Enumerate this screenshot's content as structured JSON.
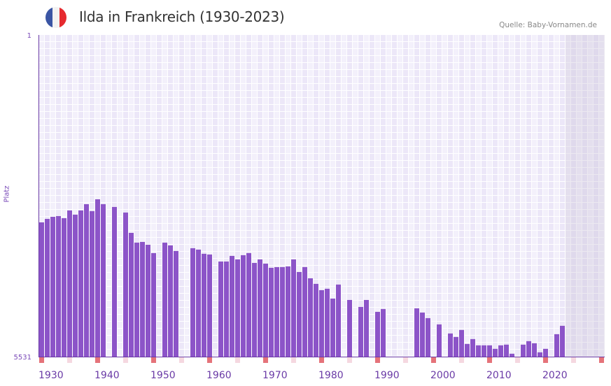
{
  "header": {
    "title": "Ilda in Frankreich (1930-2023)",
    "source": "Quelle: Baby-Vornamen.de",
    "flag_colors": [
      "#3a55a4",
      "#f2f2f2",
      "#e62a2f"
    ]
  },
  "chart_data": {
    "type": "bar",
    "title": "Ilda in Frankreich (1930-2023)",
    "xlabel": "",
    "ylabel": "Platz",
    "xlim": [
      1930,
      2030
    ],
    "ylim": [
      5531,
      1
    ],
    "y_inverted": true,
    "ytick_labels": [
      "1",
      "5531"
    ],
    "xtick_labels": [
      "1930",
      "1940",
      "1950",
      "1960",
      "1970",
      "1980",
      "1990",
      "2000",
      "2010",
      "2020"
    ],
    "grid": true,
    "future_shaded_from": 2024,
    "bar_color": "#8c54c8",
    "decade_marker_color": "#e5737a",
    "half_decade_marker_color": "#f5d8e0",
    "years": [
      1930,
      1931,
      1932,
      1933,
      1934,
      1935,
      1936,
      1937,
      1938,
      1939,
      1940,
      1941,
      1943,
      1945,
      1946,
      1947,
      1948,
      1949,
      1950,
      1952,
      1953,
      1954,
      1957,
      1958,
      1959,
      1960,
      1962,
      1963,
      1964,
      1965,
      1966,
      1967,
      1968,
      1969,
      1970,
      1971,
      1972,
      1973,
      1974,
      1975,
      1976,
      1977,
      1978,
      1979,
      1980,
      1981,
      1982,
      1983,
      1985,
      1987,
      1988,
      1990,
      1991,
      1997,
      1998,
      1999,
      2001,
      2003,
      2004,
      2005,
      2006,
      2007,
      2008,
      2009,
      2010,
      2011,
      2012,
      2013,
      2014,
      2016,
      2017,
      2018,
      2019,
      2020,
      2022,
      2023
    ],
    "values": [
      3223,
      3163,
      3127,
      3115,
      3151,
      3018,
      3090,
      3018,
      2910,
      3030,
      2826,
      2910,
      2958,
      3054,
      3403,
      3571,
      3559,
      3607,
      3751,
      3571,
      3619,
      3715,
      3667,
      3691,
      3763,
      3775,
      3896,
      3896,
      3799,
      3860,
      3787,
      3751,
      3920,
      3860,
      3932,
      4004,
      3992,
      3992,
      3980,
      3860,
      4076,
      3992,
      4184,
      4280,
      4388,
      4364,
      4533,
      4292,
      4557,
      4677,
      4557,
      4761,
      4713,
      4701,
      4773,
      4869,
      4977,
      5133,
      5193,
      5073,
      5313,
      5229,
      5337,
      5337,
      5337,
      5397,
      5337,
      5325,
      5481,
      5325,
      5265,
      5301,
      5457,
      5397,
      5145,
      5001
    ]
  }
}
